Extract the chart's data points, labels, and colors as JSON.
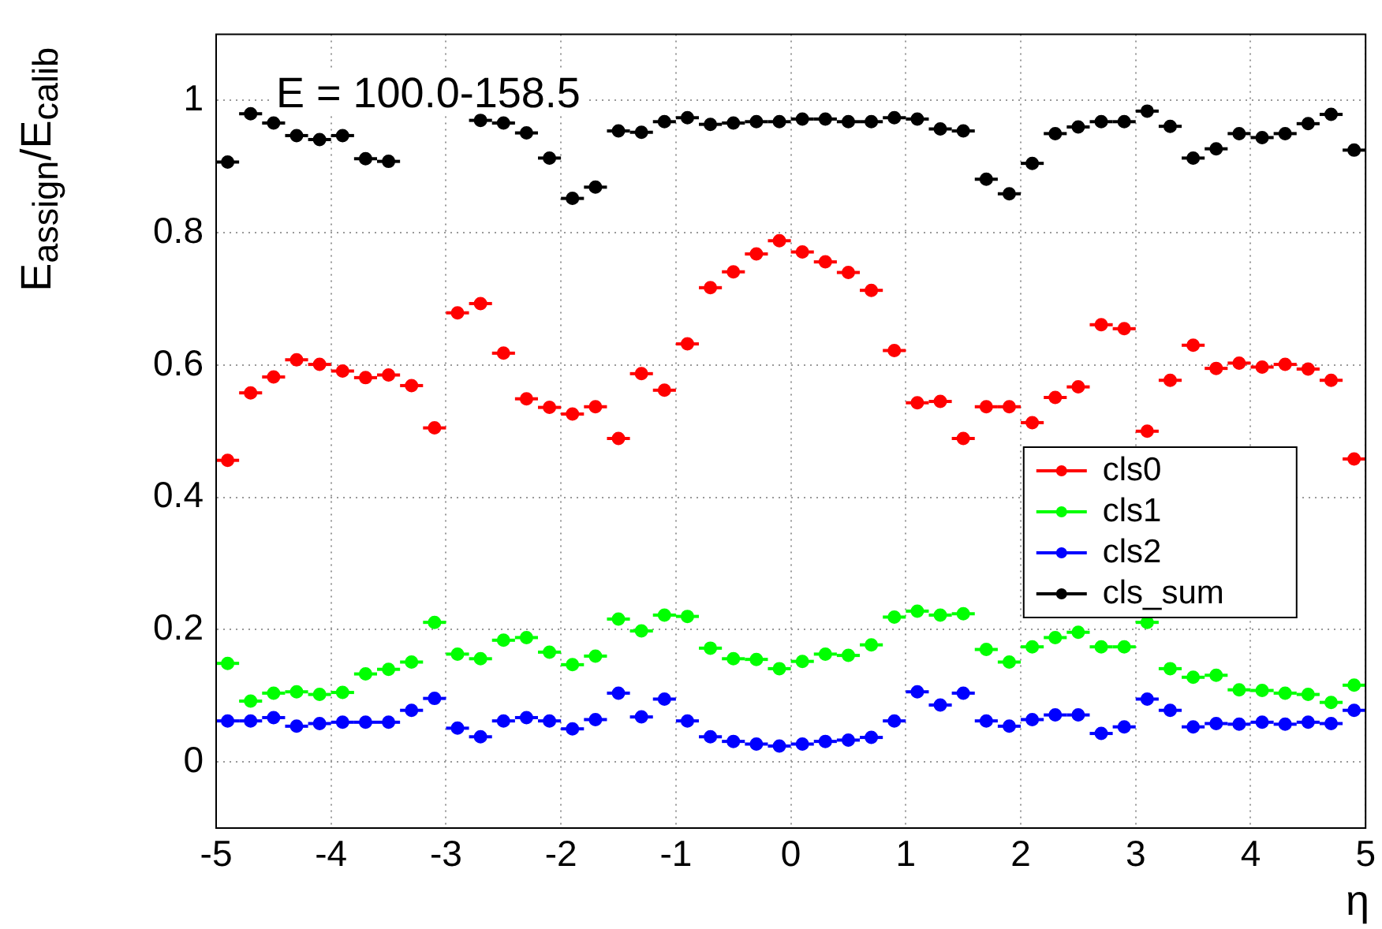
{
  "chart_data": {
    "type": "scatter",
    "xlabel": "η",
    "ylabel": "E$_{assign}$/E$_{calib}$",
    "annotations": [
      "E = 100.0-158.5"
    ],
    "x": [
      -4.9,
      -4.7,
      -4.5,
      -4.3,
      -4.1,
      -3.9,
      -3.7,
      -3.5,
      -3.3,
      -3.1,
      -2.9,
      -2.7,
      -2.5,
      -2.3,
      -2.1,
      -1.9,
      -1.7,
      -1.5,
      -1.3,
      -1.1,
      -0.9,
      -0.7,
      -0.5,
      -0.3,
      -0.1,
      0.1,
      0.3,
      0.5,
      0.7,
      0.9,
      1.1,
      1.3,
      1.5,
      1.7,
      1.9,
      2.1,
      2.3,
      2.5,
      2.7,
      2.9,
      3.1,
      3.3,
      3.5,
      3.7,
      3.9,
      4.1,
      4.3,
      4.5,
      4.7,
      4.9
    ],
    "series": [
      {
        "name": "cls0",
        "color": "#ff0000",
        "values": [
          0.456,
          0.558,
          0.582,
          0.608,
          0.601,
          0.591,
          0.581,
          0.585,
          0.569,
          0.505,
          0.679,
          0.693,
          0.618,
          0.549,
          0.536,
          0.526,
          0.537,
          0.489,
          0.587,
          0.562,
          0.632,
          0.717,
          0.741,
          0.768,
          0.788,
          0.771,
          0.756,
          0.74,
          0.713,
          0.622,
          0.543,
          0.545,
          0.489,
          0.537,
          0.537,
          0.513,
          0.551,
          0.567,
          0.661,
          0.655,
          0.5,
          0.577,
          0.63,
          0.595,
          0.603,
          0.597,
          0.601,
          0.594,
          0.577,
          0.458
        ],
        "xerrors": [
          0.1,
          0.1,
          0.1,
          0.1,
          0.1,
          0.1,
          0.1,
          0.1,
          0.1,
          0.1,
          0.1,
          0.1,
          0.1,
          0.1,
          0.1,
          0.1,
          0.1,
          0.1,
          0.1,
          0.1,
          0.1,
          0.1,
          0.1,
          0.1,
          0.1,
          0.1,
          0.1,
          0.1,
          0.1,
          0.1,
          0.1,
          0.1,
          0.1,
          0.1,
          0.1,
          0.1,
          0.1,
          0.1,
          0.1,
          0.1,
          0.1,
          0.1,
          0.1,
          0.1,
          0.1,
          0.1,
          0.1,
          0.1,
          0.1,
          0.1
        ]
      },
      {
        "name": "cls1",
        "color": "#00ff00",
        "values": [
          0.149,
          0.092,
          0.104,
          0.106,
          0.102,
          0.105,
          0.133,
          0.14,
          0.151,
          0.211,
          0.163,
          0.156,
          0.184,
          0.188,
          0.166,
          0.147,
          0.16,
          0.216,
          0.198,
          0.222,
          0.22,
          0.172,
          0.156,
          0.155,
          0.141,
          0.152,
          0.163,
          0.161,
          0.177,
          0.219,
          0.228,
          0.222,
          0.224,
          0.17,
          0.151,
          0.174,
          0.188,
          0.196,
          0.174,
          0.174,
          0.211,
          0.141,
          0.128,
          0.131,
          0.109,
          0.108,
          0.104,
          0.102,
          0.09,
          0.116
        ],
        "xerrors": [
          0.1,
          0.1,
          0.1,
          0.1,
          0.1,
          0.1,
          0.1,
          0.1,
          0.1,
          0.1,
          0.1,
          0.1,
          0.1,
          0.1,
          0.1,
          0.1,
          0.1,
          0.1,
          0.1,
          0.1,
          0.1,
          0.1,
          0.1,
          0.1,
          0.1,
          0.1,
          0.1,
          0.1,
          0.1,
          0.1,
          0.1,
          0.1,
          0.1,
          0.1,
          0.1,
          0.1,
          0.1,
          0.1,
          0.1,
          0.1,
          0.1,
          0.1,
          0.1,
          0.1,
          0.1,
          0.1,
          0.1,
          0.1,
          0.1,
          0.1
        ]
      },
      {
        "name": "cls2",
        "color": "#0000ff",
        "values": [
          0.062,
          0.062,
          0.067,
          0.054,
          0.058,
          0.06,
          0.06,
          0.06,
          0.078,
          0.096,
          0.051,
          0.038,
          0.062,
          0.067,
          0.062,
          0.05,
          0.064,
          0.104,
          0.068,
          0.095,
          0.062,
          0.038,
          0.031,
          0.027,
          0.024,
          0.027,
          0.031,
          0.033,
          0.037,
          0.062,
          0.106,
          0.086,
          0.104,
          0.062,
          0.054,
          0.064,
          0.071,
          0.071,
          0.043,
          0.053,
          0.095,
          0.078,
          0.053,
          0.058,
          0.057,
          0.06,
          0.057,
          0.06,
          0.058,
          0.078
        ],
        "xerrors": [
          0.1,
          0.1,
          0.1,
          0.1,
          0.1,
          0.1,
          0.1,
          0.1,
          0.1,
          0.1,
          0.1,
          0.1,
          0.1,
          0.1,
          0.1,
          0.1,
          0.1,
          0.1,
          0.1,
          0.1,
          0.1,
          0.1,
          0.1,
          0.1,
          0.1,
          0.1,
          0.1,
          0.1,
          0.1,
          0.1,
          0.1,
          0.1,
          0.1,
          0.1,
          0.1,
          0.1,
          0.1,
          0.1,
          0.1,
          0.1,
          0.1,
          0.1,
          0.1,
          0.1,
          0.1,
          0.1,
          0.1,
          0.1,
          0.1,
          0.1
        ]
      },
      {
        "name": "cls_sum",
        "color": "#000000",
        "values": [
          0.907,
          0.98,
          0.966,
          0.947,
          0.941,
          0.947,
          0.912,
          0.908,
          null,
          null,
          null,
          0.97,
          0.966,
          0.951,
          0.913,
          0.852,
          0.869,
          0.954,
          0.952,
          0.968,
          0.974,
          0.964,
          0.966,
          0.968,
          0.968,
          0.972,
          0.972,
          0.968,
          0.968,
          0.974,
          0.972,
          0.957,
          0.954,
          0.881,
          0.859,
          0.905,
          0.95,
          0.96,
          0.968,
          0.968,
          0.984,
          0.961,
          0.913,
          0.927,
          0.95,
          0.944,
          0.95,
          0.965,
          0.979,
          0.925
        ],
        "xerrors": [
          0.1,
          0.1,
          0.1,
          0.1,
          0.1,
          0.1,
          0.1,
          0.1,
          null,
          null,
          null,
          0.1,
          0.1,
          0.1,
          0.1,
          0.1,
          0.1,
          0.1,
          0.1,
          0.1,
          0.1,
          0.1,
          0.1,
          0.1,
          0.1,
          0.1,
          0.1,
          0.1,
          0.1,
          0.1,
          0.1,
          0.1,
          0.1,
          0.1,
          0.1,
          0.1,
          0.1,
          0.1,
          0.1,
          0.1,
          0.1,
          0.1,
          0.1,
          0.1,
          0.1,
          0.1,
          0.1,
          0.1,
          0.1,
          0.1
        ]
      }
    ],
    "xlim": [
      -5,
      5
    ],
    "xticks": [
      -5,
      -4,
      -3,
      -2,
      -1,
      0,
      1,
      2,
      3,
      4,
      5
    ],
    "ylim": [
      -0.1,
      1.1
    ],
    "yticks": [
      0,
      0.2,
      0.4,
      0.6,
      0.8,
      1
    ],
    "grid": true,
    "legend": "right",
    "marker": "circle"
  }
}
